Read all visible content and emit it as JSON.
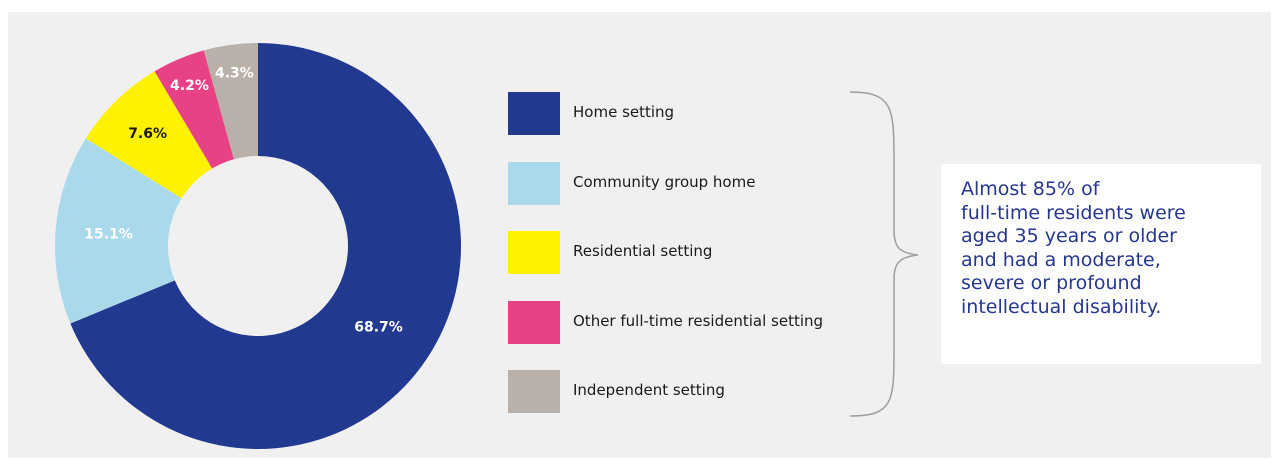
{
  "chart_data": {
    "type": "pie",
    "variant": "donut",
    "slices": [
      {
        "label": "Home setting",
        "value": 68.7,
        "value_label": "68.7%",
        "color": "#223990",
        "label_color": "#ffffff"
      },
      {
        "label": "Community group home",
        "value": 15.1,
        "value_label": "15.1%",
        "color": "#a9d9ea",
        "label_color": "#ffffff"
      },
      {
        "label": "Residential setting",
        "value": 7.6,
        "value_label": "7.6%",
        "color": "#fff200",
        "label_color": "#1a1a1a"
      },
      {
        "label": "Other full-time residential setting",
        "value": 4.2,
        "value_label": "4.2%",
        "color": "#e84287",
        "label_color": "#ffffff"
      },
      {
        "label": "Independent setting",
        "value": 4.3,
        "value_label": "4.3%",
        "color": "#bab0aa",
        "label_color": "#ffffff"
      }
    ],
    "legend_position": "right"
  },
  "callout": {
    "lines": [
      "Almost 85% of",
      "full-time residents were",
      "aged 35 years or older",
      "and had a moderate,",
      "severe or profound",
      "intellectual disability."
    ]
  },
  "colors": {
    "panel_background": "#f0f0f0",
    "callout_text": "#25378f",
    "brace": "#9e9e9e"
  }
}
